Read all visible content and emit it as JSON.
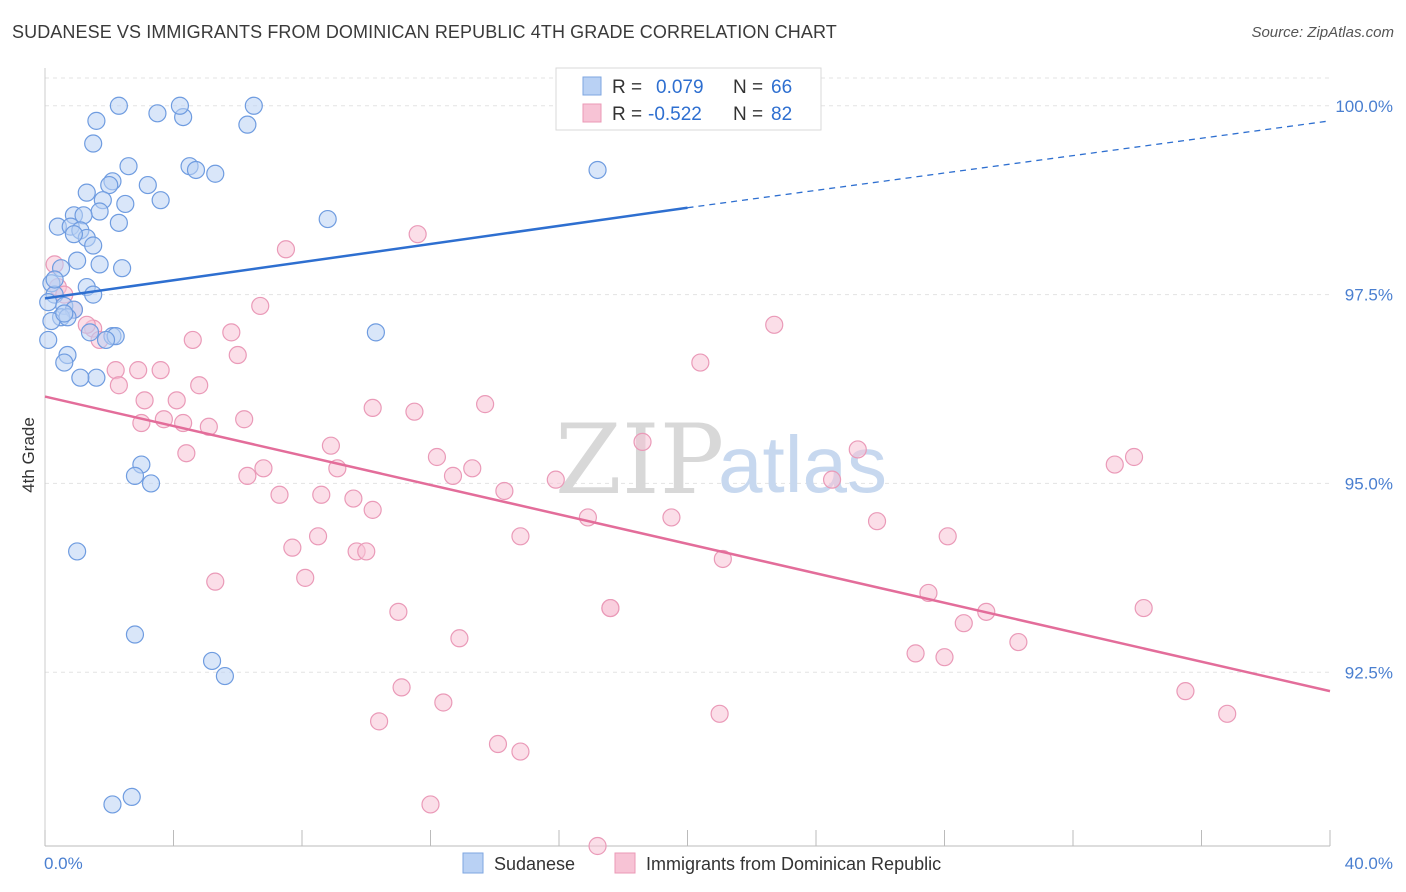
{
  "title": "SUDANESE VS IMMIGRANTS FROM DOMINICAN REPUBLIC 4TH GRADE CORRELATION CHART",
  "source": "Source: ZipAtlas.com",
  "watermark": {
    "zip": "ZIP",
    "atlas": "atlas"
  },
  "colors": {
    "blue": "#2e6fd0",
    "blue_fill": "#b9d1f4",
    "pink": "#e36d9a",
    "pink_fill": "#f7c3d5",
    "grid": "#e3e3e3",
    "tick_text": "#4a7fd0"
  },
  "legend": {
    "r_label": "R =",
    "n_label": "N =",
    "items": [
      {
        "r": "0.079",
        "n": "66"
      },
      {
        "r": "-0.522",
        "n": "82"
      }
    ]
  },
  "chart_data": {
    "type": "scatter",
    "title": "SUDANESE VS IMMIGRANTS FROM DOMINICAN REPUBLIC 4TH GRADE CORRELATION CHART",
    "xlabel": "",
    "ylabel": "4th Grade",
    "xlim": [
      0,
      40
    ],
    "ylim": [
      90.2,
      100.5
    ],
    "x_tick_labels": [
      "0.0%",
      "40.0%"
    ],
    "y_ticks": [
      92.5,
      95.0,
      97.5,
      100.0
    ],
    "y_tick_labels": [
      "92.5%",
      "95.0%",
      "97.5%",
      "100.0%"
    ],
    "grid": "horizontal dashed",
    "legend_position": "top-center",
    "series": [
      {
        "name": "Sudanese",
        "color": "#2e6fd0",
        "trend": {
          "x": [
            0,
            20
          ],
          "y": [
            97.45,
            98.65
          ],
          "dashed_to": [
            40,
            99.8
          ]
        },
        "points": [
          [
            2.3,
            100.0
          ],
          [
            3.5,
            99.9
          ],
          [
            4.3,
            99.85
          ],
          [
            4.2,
            100.0
          ],
          [
            6.5,
            100.0
          ],
          [
            1.6,
            99.8
          ],
          [
            6.3,
            99.75
          ],
          [
            1.5,
            99.5
          ],
          [
            2.6,
            99.2
          ],
          [
            4.5,
            99.2
          ],
          [
            4.7,
            99.15
          ],
          [
            5.3,
            99.1
          ],
          [
            2.1,
            99.0
          ],
          [
            2.0,
            98.95
          ],
          [
            3.2,
            98.95
          ],
          [
            1.3,
            98.85
          ],
          [
            3.6,
            98.75
          ],
          [
            2.5,
            98.7
          ],
          [
            1.8,
            98.75
          ],
          [
            1.7,
            98.6
          ],
          [
            0.9,
            98.55
          ],
          [
            1.2,
            98.55
          ],
          [
            2.3,
            98.45
          ],
          [
            0.4,
            98.4
          ],
          [
            0.8,
            98.4
          ],
          [
            1.1,
            98.35
          ],
          [
            1.3,
            98.25
          ],
          [
            0.9,
            98.3
          ],
          [
            1.5,
            98.15
          ],
          [
            1.7,
            97.9
          ],
          [
            2.4,
            97.85
          ],
          [
            0.5,
            97.85
          ],
          [
            0.2,
            97.65
          ],
          [
            1.3,
            97.6
          ],
          [
            1.5,
            97.5
          ],
          [
            0.3,
            97.5
          ],
          [
            0.1,
            97.4
          ],
          [
            0.6,
            97.35
          ],
          [
            0.9,
            97.3
          ],
          [
            0.5,
            97.2
          ],
          [
            0.7,
            97.2
          ],
          [
            0.2,
            97.15
          ],
          [
            1.4,
            97.0
          ],
          [
            2.1,
            96.95
          ],
          [
            2.2,
            96.95
          ],
          [
            0.1,
            96.9
          ],
          [
            0.7,
            96.7
          ],
          [
            0.6,
            96.6
          ],
          [
            1.6,
            96.4
          ],
          [
            1.1,
            96.4
          ],
          [
            8.8,
            98.5
          ],
          [
            10.3,
            97.0
          ],
          [
            17.2,
            99.15
          ],
          [
            3.0,
            95.25
          ],
          [
            2.8,
            95.1
          ],
          [
            3.3,
            95.0
          ],
          [
            1.0,
            94.1
          ],
          [
            2.8,
            93.0
          ],
          [
            5.2,
            92.65
          ],
          [
            5.6,
            92.45
          ],
          [
            2.1,
            90.75
          ],
          [
            2.7,
            90.85
          ],
          [
            0.3,
            97.7
          ],
          [
            1.0,
            97.95
          ],
          [
            0.6,
            97.25
          ],
          [
            1.9,
            96.9
          ]
        ]
      },
      {
        "name": "Immigrants from Dominican Republic",
        "color": "#e36d9a",
        "trend": {
          "x": [
            0,
            40
          ],
          "y": [
            96.15,
            92.25
          ]
        },
        "points": [
          [
            0.3,
            97.9
          ],
          [
            0.4,
            97.6
          ],
          [
            0.6,
            97.5
          ],
          [
            0.9,
            97.3
          ],
          [
            1.5,
            97.05
          ],
          [
            1.7,
            96.9
          ],
          [
            1.3,
            97.1
          ],
          [
            2.2,
            96.5
          ],
          [
            2.3,
            96.3
          ],
          [
            2.9,
            96.5
          ],
          [
            3.6,
            96.5
          ],
          [
            4.6,
            96.9
          ],
          [
            5.8,
            97.0
          ],
          [
            6.0,
            96.7
          ],
          [
            6.7,
            97.35
          ],
          [
            7.5,
            98.1
          ],
          [
            11.6,
            98.3
          ],
          [
            3.0,
            95.8
          ],
          [
            3.1,
            96.1
          ],
          [
            3.7,
            95.85
          ],
          [
            4.3,
            95.8
          ],
          [
            4.1,
            96.1
          ],
          [
            4.8,
            96.3
          ],
          [
            5.1,
            95.75
          ],
          [
            6.2,
            95.85
          ],
          [
            4.4,
            95.4
          ],
          [
            6.3,
            95.1
          ],
          [
            6.8,
            95.2
          ],
          [
            7.3,
            94.85
          ],
          [
            8.5,
            94.3
          ],
          [
            7.7,
            94.15
          ],
          [
            8.1,
            93.75
          ],
          [
            8.6,
            94.85
          ],
          [
            8.9,
            95.5
          ],
          [
            9.1,
            95.2
          ],
          [
            9.6,
            94.8
          ],
          [
            9.7,
            94.1
          ],
          [
            10.2,
            94.65
          ],
          [
            10.0,
            94.1
          ],
          [
            10.2,
            96.0
          ],
          [
            11.5,
            95.95
          ],
          [
            12.2,
            95.35
          ],
          [
            12.7,
            95.1
          ],
          [
            13.3,
            95.2
          ],
          [
            13.7,
            96.05
          ],
          [
            14.3,
            94.9
          ],
          [
            14.8,
            94.3
          ],
          [
            15.9,
            95.05
          ],
          [
            16.9,
            94.55
          ],
          [
            17.6,
            93.35
          ],
          [
            18.6,
            95.55
          ],
          [
            19.5,
            94.55
          ],
          [
            20.4,
            96.6
          ],
          [
            21.1,
            94.0
          ],
          [
            22.7,
            97.1
          ],
          [
            24.5,
            95.05
          ],
          [
            25.3,
            95.45
          ],
          [
            25.9,
            94.5
          ],
          [
            27.5,
            93.55
          ],
          [
            28.1,
            94.3
          ],
          [
            29.3,
            93.3
          ],
          [
            28.6,
            93.15
          ],
          [
            30.3,
            92.9
          ],
          [
            27.1,
            92.75
          ],
          [
            28.0,
            92.7
          ],
          [
            33.3,
            95.25
          ],
          [
            33.9,
            95.35
          ],
          [
            34.2,
            93.35
          ],
          [
            35.5,
            92.25
          ],
          [
            36.8,
            91.95
          ],
          [
            11.0,
            93.3
          ],
          [
            10.4,
            91.85
          ],
          [
            11.1,
            92.3
          ],
          [
            12.4,
            92.1
          ],
          [
            12.9,
            92.95
          ],
          [
            14.1,
            91.55
          ],
          [
            14.8,
            91.45
          ],
          [
            17.6,
            93.35
          ],
          [
            21.0,
            91.95
          ],
          [
            17.2,
            90.2
          ],
          [
            12.0,
            90.75
          ],
          [
            5.3,
            93.7
          ]
        ]
      }
    ]
  },
  "bottom_legend": [
    "Sudanese",
    "Immigrants from Dominican Republic"
  ]
}
